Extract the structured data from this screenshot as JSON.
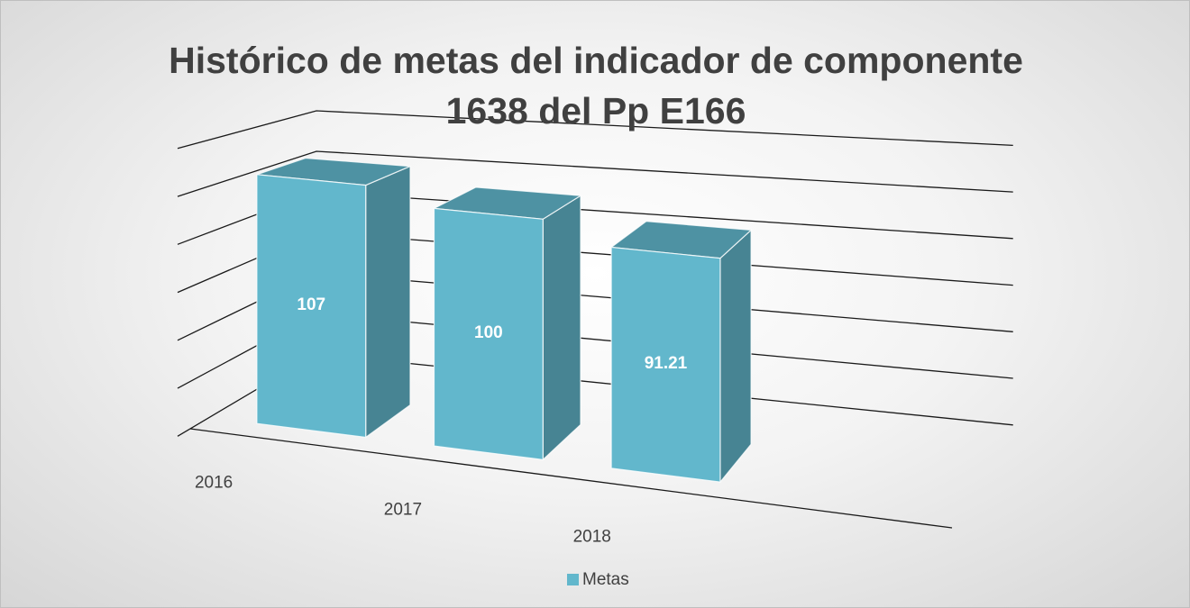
{
  "chart_data": {
    "type": "bar3d",
    "title": "Histórico de metas del indicador de componente 1638 del Pp E166",
    "categories": [
      "2016",
      "2017",
      "2018"
    ],
    "series": [
      {
        "name": "Metas",
        "color": "#62b7cc",
        "values": [
          107,
          100,
          91.21
        ]
      }
    ],
    "ylim": [
      0,
      120
    ],
    "yticks": [
      0,
      20,
      40,
      60,
      80,
      100,
      120
    ],
    "grid": true,
    "legend": "bottom"
  }
}
